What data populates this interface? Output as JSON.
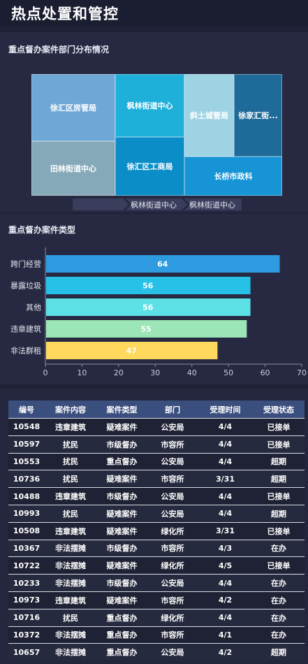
{
  "page": {
    "title": "热点处置和管控"
  },
  "treemap": {
    "title": "重点督办案件部门分布情况",
    "cells": [
      {
        "label": "徐汇区房管局",
        "color": "#6fa8d6"
      },
      {
        "label": "枫林街道中心",
        "color": "#1fb0da"
      },
      {
        "label": "斜土城管局",
        "color": "#9dd3e2"
      },
      {
        "label": "徐家汇街...",
        "color": "#1e6b9a"
      },
      {
        "label": "田林街道中心",
        "color": "#86a9b9"
      },
      {
        "label": "徐汇区工商局",
        "color": "#0b8ec8"
      },
      {
        "label": "长桥市政科",
        "color": "#1794d6"
      }
    ],
    "breadcrumb": [
      "",
      "枫林街道中心",
      "枫林街道中心"
    ]
  },
  "chart_data": {
    "type": "bar",
    "title": "重点督办案件类型",
    "orientation": "horizontal",
    "categories": [
      "跨门经营",
      "暴露垃圾",
      "其他",
      "违章建筑",
      "非法群租"
    ],
    "values": [
      64,
      56,
      56,
      55,
      47
    ],
    "colors": [
      "#2e9be0",
      "#27c1e8",
      "#5de0e6",
      "#9be5b7",
      "#ffd95e"
    ],
    "xlim": [
      0,
      70
    ],
    "xticks": [
      0,
      10,
      20,
      30,
      40,
      50,
      60,
      70
    ],
    "data_labels": true
  },
  "table": {
    "headers": [
      "编号",
      "案件内容",
      "案件类型",
      "部门",
      "受理时间",
      "受理状态"
    ],
    "rows": [
      [
        "10548",
        "违章建筑",
        "疑难案件",
        "公安局",
        "4/4",
        "已接单"
      ],
      [
        "10597",
        "扰民",
        "市级督办",
        "市容所",
        "4/4",
        "已接单"
      ],
      [
        "10553",
        "扰民",
        "重点督办",
        "公安局",
        "4/4",
        "超期"
      ],
      [
        "10736",
        "扰民",
        "疑难案件",
        "市容所",
        "3/31",
        "超期"
      ],
      [
        "10488",
        "违章建筑",
        "市级督办",
        "公安局",
        "4/4",
        "已接单"
      ],
      [
        "10993",
        "扰民",
        "疑难案件",
        "公安局",
        "4/4",
        "超期"
      ],
      [
        "10508",
        "违章建筑",
        "疑难案件",
        "绿化所",
        "3/31",
        "已接单"
      ],
      [
        "10367",
        "非法摆摊",
        "市级督办",
        "市容所",
        "4/3",
        "在办"
      ],
      [
        "10722",
        "非法摆摊",
        "疑难案件",
        "绿化所",
        "4/5",
        "已接单"
      ],
      [
        "10233",
        "非法摆摊",
        "市级督办",
        "公安局",
        "4/4",
        "在办"
      ],
      [
        "10973",
        "违章建筑",
        "疑难案件",
        "市容所",
        "4/2",
        "在办"
      ],
      [
        "10716",
        "扰民",
        "重点督办",
        "绿化所",
        "4/4",
        "在办"
      ],
      [
        "10372",
        "非法摆摊",
        "重点督办",
        "市容所",
        "4/1",
        "在办"
      ],
      [
        "10657",
        "非法摆摊",
        "重点督办",
        "公安局",
        "4/2",
        "超期"
      ]
    ]
  }
}
